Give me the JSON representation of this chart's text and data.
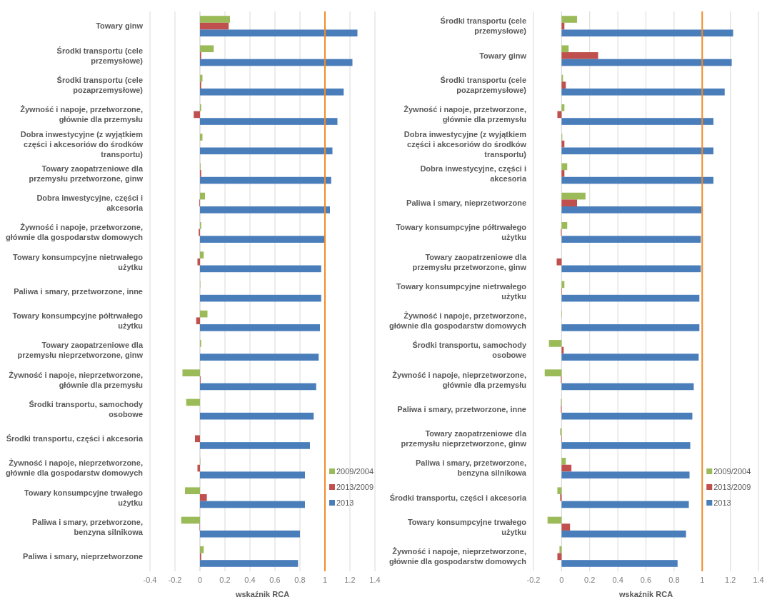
{
  "chart_data": [
    {
      "type": "bar",
      "orientation": "horizontal",
      "xlabel": "wskaźnik RCA",
      "grid": "x",
      "legend": "bottom right",
      "xlim": [
        -0.4,
        1.4
      ],
      "xticks": [
        -0.4,
        -0.2,
        0,
        0.2,
        0.4,
        0.6,
        0.8,
        1,
        1.2,
        1.4
      ],
      "ref_lines": [
        {
          "axis": "x",
          "value": 1,
          "color": "#f28c28"
        }
      ],
      "categories": [
        "Towary ginw",
        "Środki transportu (cele przemysłowe)",
        "Środki transportu (cele pozaprzemysłowe)",
        "Żywność i napoje, przetworzone, głównie dla przemysłu",
        "Dobra inwestycyjne  (z wyjątkiem części i akcesoriów do środków transportu)",
        "Towary zaopatrzeniowe dla przemysłu przetworzone, ginw",
        "Dobra inwestycyjne, części i akcesoria",
        "Żywność i napoje, przetworzone, głównie dla gospodarstw domowych",
        "Towary konsumpcyjne nietrwałego użytku",
        "Paliwa i smary, przetworzone, inne",
        "Towary konsumpcyjne półtrwałego użytku",
        "Towary zaopatrzeniowe dla przemysłu nieprzetworzone, ginw",
        "Żywność i napoje, nieprzetworzone, głównie dla przemysłu",
        "Środki transportu, samochody osobowe",
        "Środki transportu, części i akcesoria",
        "Żywność i napoje, nieprzetworzone, głównie dla gospodarstw domowych",
        "Towary konsumpcyjne trwałego użytku",
        "Paliwa i smary, przetworzone, benzyna silnikowa",
        "Paliwa i smary, nieprzetworzone"
      ],
      "series": [
        {
          "name": "2009/2004",
          "color": "#9bbb59",
          "values": [
            0.24,
            0.11,
            0.02,
            0.01,
            0.02,
            0.005,
            0.04,
            0.01,
            0.03,
            0.003,
            0.06,
            0.01,
            -0.14,
            -0.11,
            0,
            0.003,
            -0.12,
            -0.15,
            0.03
          ]
        },
        {
          "name": "2013/2009",
          "color": "#c0504d",
          "values": [
            0.23,
            0.01,
            0.01,
            -0.05,
            0,
            0.01,
            -0.005,
            -0.01,
            -0.02,
            null,
            -0.03,
            0,
            0.005,
            0,
            -0.04,
            -0.02,
            0.055,
            -0.003,
            0.01
          ]
        },
        {
          "name": "2013",
          "color": "#4a7ebb",
          "values": [
            1.26,
            1.22,
            1.15,
            1.1,
            1.06,
            1.05,
            1.04,
            1,
            0.97,
            0.97,
            0.96,
            0.95,
            0.93,
            0.91,
            0.88,
            0.84,
            0.84,
            0.8,
            0.785
          ]
        }
      ]
    },
    {
      "type": "bar",
      "orientation": "horizontal",
      "xlabel": "wskaźnik RCA",
      "grid": "x",
      "legend": "bottom right",
      "xlim": [
        -0.2,
        1.4
      ],
      "xticks": [
        -0.2,
        0,
        0.2,
        0.4,
        0.6,
        0.8,
        1,
        1.2,
        1.4
      ],
      "ref_lines": [
        {
          "axis": "x",
          "value": 1,
          "color": "#f28c28"
        }
      ],
      "categories": [
        "Środki transportu (cele przemysłowe)",
        "Towary ginw",
        "Środki transportu (cele pozaprzemysłowe)",
        "Żywność i napoje, przetworzone, głównie dla przemysłu",
        "Dobra inwestycyjne  (z wyjątkiem części i akcesoriów do środków transportu)",
        "Dobra inwestycyjne, części i akcesoria",
        "Paliwa i smary, nieprzetworzone",
        "Towary konsumpcyjne półtrwałego użytku",
        "Towary zaopatrzeniowe dla przemysłu przetworzone, ginw",
        "Towary konsumpcyjne nietrwałego użytku",
        "Żywność i napoje, przetworzone, głównie dla gospodarstw domowych",
        "Środki transportu, samochody osobowe",
        "Żywność i napoje, nieprzetworzone, głównie dla przemysłu",
        "Paliwa i smary, przetworzone, inne",
        "Towary zaopatrzeniowe dla przemysłu nieprzetworzone, ginw",
        "Paliwa i smary, przetworzone, benzyna silnikowa",
        "Środki transportu, części i akcesoria",
        "Towary konsumpcyjne trwałego użytku",
        "Żywność i napoje, nieprzetworzone, głównie dla gospodarstw domowych"
      ],
      "series": [
        {
          "name": "2009/2004",
          "color": "#9bbb59",
          "values": [
            0.11,
            0.05,
            0.01,
            0.02,
            0.005,
            0.04,
            0.17,
            0.04,
            0,
            0.02,
            0.003,
            -0.09,
            -0.12,
            -0.005,
            -0.01,
            0.03,
            -0.03,
            -0.1,
            -0.015
          ]
        },
        {
          "name": "2013/2009",
          "color": "#c0504d",
          "values": [
            0.02,
            0.26,
            0.03,
            -0.03,
            0.02,
            0.02,
            0.11,
            -0.005,
            -0.035,
            0.003,
            null,
            0.015,
            -0.005,
            -0.005,
            0.003,
            0.07,
            -0.01,
            0.06,
            -0.03
          ]
        },
        {
          "name": "2013",
          "color": "#4a7ebb",
          "values": [
            1.22,
            1.21,
            1.16,
            1.08,
            1.08,
            1.08,
            0.995,
            0.99,
            0.99,
            0.98,
            0.98,
            0.975,
            0.94,
            0.93,
            0.915,
            0.91,
            0.905,
            0.885,
            0.825
          ]
        }
      ]
    }
  ]
}
